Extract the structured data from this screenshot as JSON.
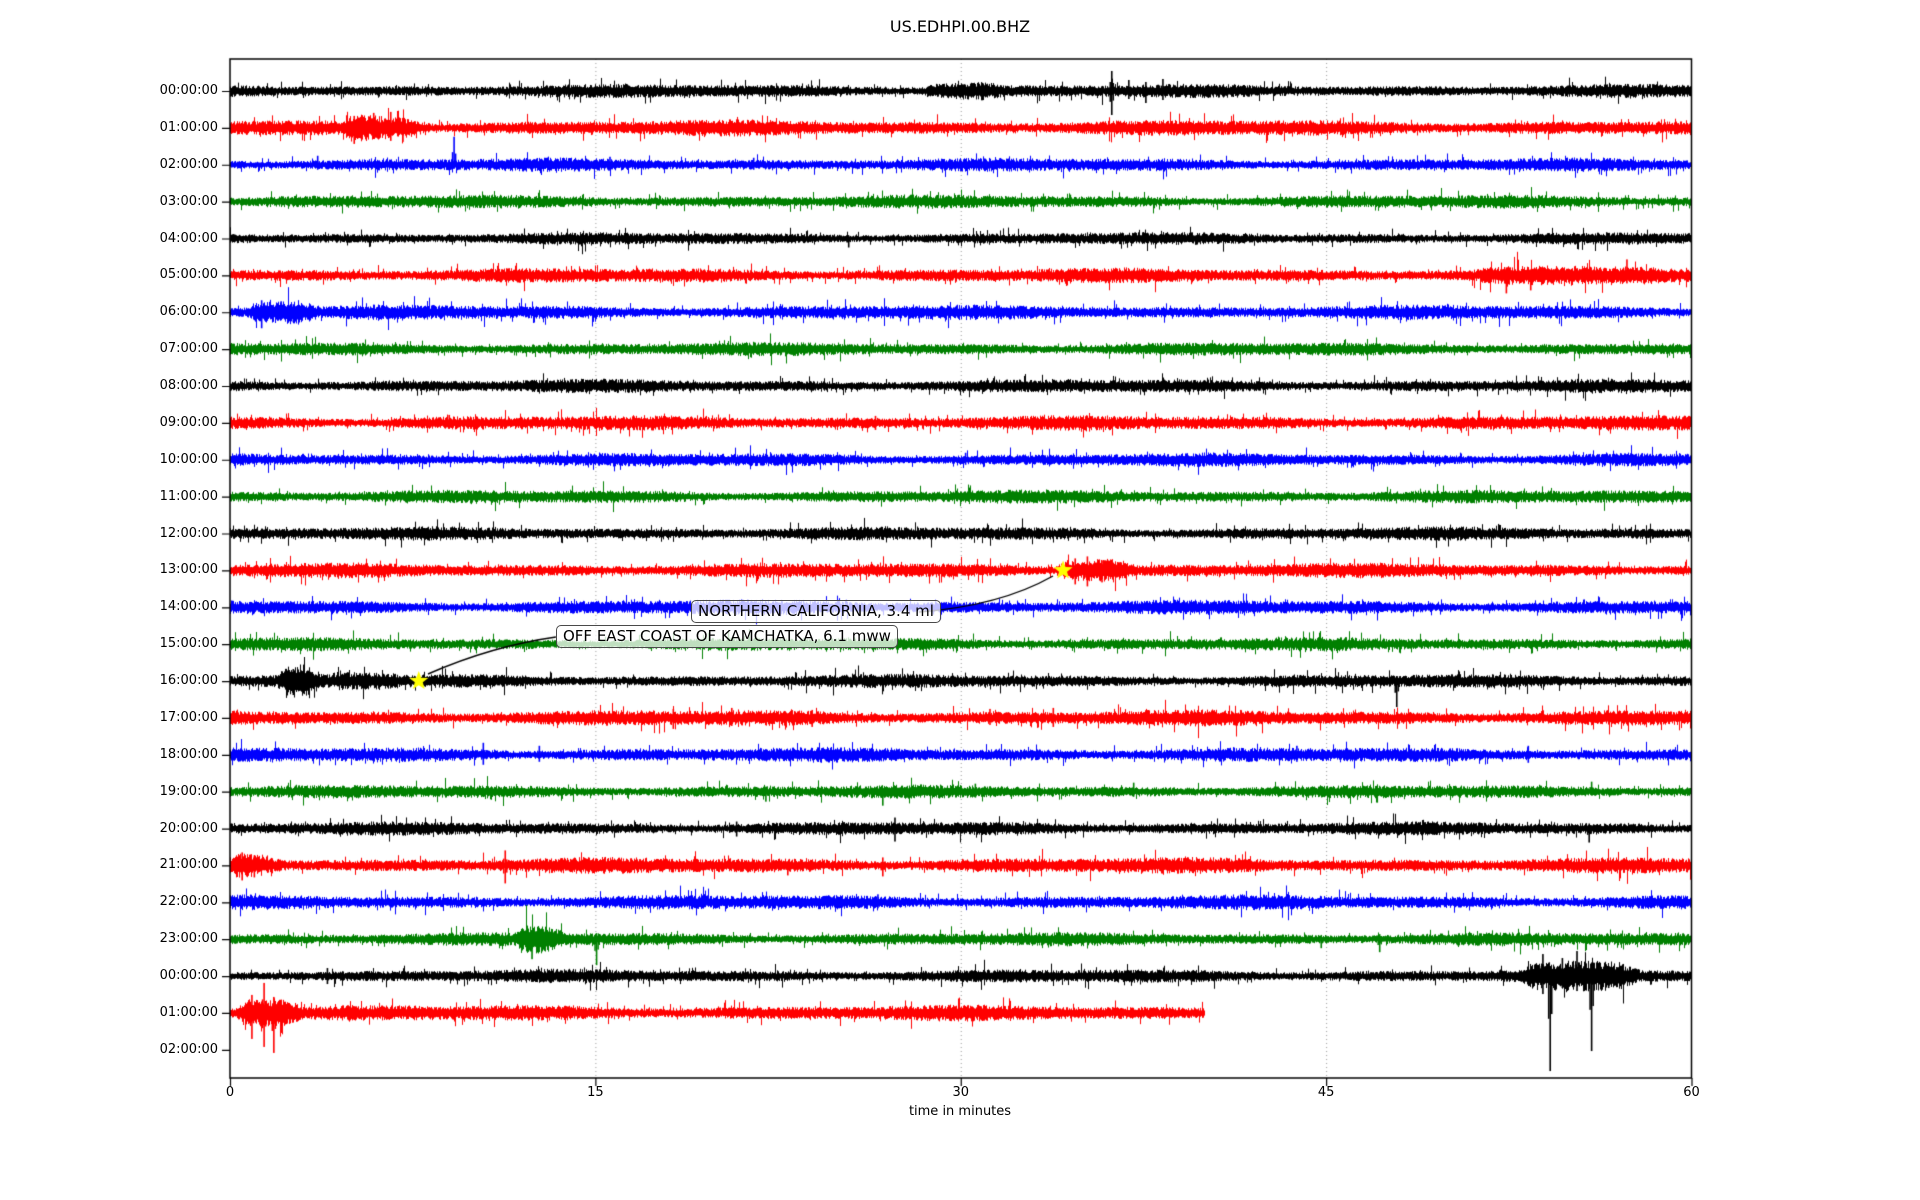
{
  "title": "US.EDHPI.00.BHZ",
  "chart_data": {
    "type": "line",
    "subtype": "seismogram-dayplot",
    "station_id": "US.EDHPI.00.BHZ",
    "xlabel": "time in minutes",
    "xlim": [
      0,
      60
    ],
    "x_ticks": [
      0,
      15,
      30,
      45,
      60
    ],
    "grid_minutes": [
      15,
      30,
      45
    ],
    "grid_style": "dotted-gray-vertical",
    "row_color_cycle": [
      "#000000",
      "#ff0000",
      "#0000ff",
      "#008000"
    ],
    "marker": {
      "shape": "star",
      "color": "#ffff00"
    },
    "annotations": [
      {
        "text": "NORTHERN CALIFORNIA, 3.4 ml",
        "row": 13,
        "minute": 34.2
      },
      {
        "text": "OFF EAST COAST OF KAMCHATKA, 6.1 mww",
        "row": 16,
        "minute": 7.75
      }
    ],
    "rows": [
      {
        "label": "00:00:00",
        "color": "#000000",
        "amp": 5.5,
        "coverage": [
          0,
          60
        ],
        "bursts": [
          [
            28.8,
            31.2,
            1.8
          ]
        ],
        "spikes": [
          [
            36.2,
            20,
            24
          ],
          [
            36.9,
            11,
            8
          ],
          [
            37.6,
            9,
            12
          ],
          [
            38.3,
            12,
            9
          ]
        ]
      },
      {
        "label": "01:00:00",
        "color": "#ff0000",
        "amp": 6.5,
        "coverage": [
          0,
          60
        ],
        "bursts": [
          [
            4.9,
            7.6,
            2.1
          ]
        ],
        "spikes": [
          [
            5.1,
            12,
            16
          ],
          [
            5.9,
            15,
            10
          ],
          [
            6.6,
            16,
            13
          ],
          [
            7.1,
            10,
            14
          ]
        ]
      },
      {
        "label": "02:00:00",
        "color": "#0000ff",
        "amp": 5.5,
        "coverage": [
          0,
          60
        ],
        "bursts": [],
        "spikes": [
          [
            3.6,
            9,
            5
          ],
          [
            9.2,
            28,
            4
          ],
          [
            15.6,
            8,
            6
          ],
          [
            21.5,
            7,
            5
          ]
        ]
      },
      {
        "label": "03:00:00",
        "color": "#008000",
        "amp": 5.5,
        "coverage": [
          0,
          60
        ],
        "bursts": [],
        "spikes": [
          [
            34.5,
            7,
            5
          ]
        ]
      },
      {
        "label": "04:00:00",
        "color": "#000000",
        "amp": 5.0,
        "coverage": [
          0,
          60
        ],
        "bursts": [],
        "spikes": [
          [
            25.4,
            3,
            9
          ]
        ]
      },
      {
        "label": "05:00:00",
        "color": "#ff0000",
        "amp": 6.0,
        "coverage": [
          0,
          60
        ],
        "bursts": [
          [
            51.5,
            58.5,
            1.35
          ]
        ],
        "spikes": [
          [
            52.4,
            8,
            18
          ],
          [
            53.4,
            6,
            15
          ],
          [
            57.35,
            16,
            8
          ],
          [
            58.4,
            6,
            6
          ]
        ]
      },
      {
        "label": "06:00:00",
        "color": "#0000ff",
        "amp": 6.0,
        "coverage": [
          0,
          60
        ],
        "bursts": [
          [
            1.0,
            3.1,
            2.3
          ]
        ],
        "spikes": [
          [
            1.3,
            12,
            16
          ],
          [
            2.1,
            11,
            8
          ],
          [
            2.6,
            8,
            10
          ]
        ]
      },
      {
        "label": "07:00:00",
        "color": "#008000",
        "amp": 5.5,
        "coverage": [
          0,
          60
        ],
        "bursts": [],
        "spikes": []
      },
      {
        "label": "08:00:00",
        "color": "#000000",
        "amp": 5.5,
        "coverage": [
          0,
          60
        ],
        "bursts": [],
        "spikes": []
      },
      {
        "label": "09:00:00",
        "color": "#ff0000",
        "amp": 6.0,
        "coverage": [
          0,
          60
        ],
        "bursts": [],
        "spikes": [
          [
            9.0,
            8,
            6
          ],
          [
            26.5,
            7,
            7
          ]
        ]
      },
      {
        "label": "10:00:00",
        "color": "#0000ff",
        "amp": 5.5,
        "coverage": [
          0,
          60
        ],
        "bursts": [],
        "spikes": [
          [
            30.2,
            7,
            5
          ]
        ]
      },
      {
        "label": "11:00:00",
        "color": "#008000",
        "amp": 5.5,
        "coverage": [
          0,
          60
        ],
        "bursts": [],
        "spikes": []
      },
      {
        "label": "12:00:00",
        "color": "#000000",
        "amp": 5.5,
        "coverage": [
          0,
          60
        ],
        "bursts": [],
        "spikes": []
      },
      {
        "label": "13:00:00",
        "color": "#ff0000",
        "amp": 6.0,
        "coverage": [
          0,
          60
        ],
        "bursts": [
          [
            34.25,
            36.6,
            2.5
          ]
        ],
        "spikes": [
          [
            34.7,
            12,
            14
          ],
          [
            35.2,
            14,
            16
          ],
          [
            35.8,
            10,
            12
          ]
        ]
      },
      {
        "label": "14:00:00",
        "color": "#0000ff",
        "amp": 6.0,
        "coverage": [
          0,
          60
        ],
        "bursts": [],
        "spikes": []
      },
      {
        "label": "15:00:00",
        "color": "#008000",
        "amp": 5.5,
        "coverage": [
          0,
          60
        ],
        "bursts": [],
        "spikes": []
      },
      {
        "label": "16:00:00",
        "color": "#000000",
        "amp": 5.5,
        "coverage": [
          0,
          60
        ],
        "bursts": [
          [
            2.3,
            3.3,
            2.6
          ],
          [
            4.3,
            6.6,
            1.5
          ]
        ],
        "spikes": [
          [
            2.6,
            12,
            14
          ],
          [
            47.9,
            4,
            26
          ]
        ]
      },
      {
        "label": "17:00:00",
        "color": "#ff0000",
        "amp": 6.5,
        "coverage": [
          0,
          60
        ],
        "bursts": [],
        "spikes": [
          [
            18.2,
            9,
            11
          ],
          [
            20.6,
            10,
            8
          ],
          [
            23.9,
            8,
            9
          ],
          [
            31.2,
            9,
            7
          ],
          [
            33.8,
            10,
            9
          ],
          [
            41.5,
            8,
            8
          ]
        ]
      },
      {
        "label": "18:00:00",
        "color": "#0000ff",
        "amp": 6.0,
        "coverage": [
          0,
          60
        ],
        "bursts": [],
        "spikes": [
          [
            10.4,
            12,
            10
          ],
          [
            12.7,
            9,
            7
          ],
          [
            43.8,
            9,
            7
          ],
          [
            53.3,
            9,
            8
          ]
        ]
      },
      {
        "label": "19:00:00",
        "color": "#008000",
        "amp": 5.5,
        "coverage": [
          0,
          60
        ],
        "bursts": [],
        "spikes": [
          [
            22.0,
            5,
            10
          ],
          [
            26.8,
            4,
            14
          ],
          [
            30.6,
            8,
            6
          ],
          [
            37.1,
            9,
            5
          ],
          [
            47.1,
            4,
            11
          ],
          [
            55.9,
            10,
            4
          ]
        ]
      },
      {
        "label": "20:00:00",
        "color": "#000000",
        "amp": 5.5,
        "coverage": [
          0,
          60
        ],
        "bursts": [],
        "spikes": [
          [
            20.8,
            7,
            8
          ],
          [
            27.3,
            11,
            13
          ],
          [
            55.8,
            5,
            14
          ]
        ]
      },
      {
        "label": "21:00:00",
        "color": "#ff0000",
        "amp": 6.5,
        "coverage": [
          0,
          60
        ],
        "bursts": [
          [
            0.2,
            1.6,
            1.9
          ]
        ],
        "spikes": [
          [
            0.5,
            13,
            15
          ],
          [
            1.0,
            10,
            12
          ],
          [
            11.3,
            15,
            18
          ],
          [
            22.9,
            4,
            10
          ],
          [
            26.8,
            8,
            11
          ]
        ]
      },
      {
        "label": "22:00:00",
        "color": "#0000ff",
        "amp": 6.0,
        "coverage": [
          0,
          60
        ],
        "bursts": [],
        "spikes": [
          [
            26.6,
            8,
            6
          ]
        ]
      },
      {
        "label": "23:00:00",
        "color": "#008000",
        "amp": 5.5,
        "coverage": [
          0,
          60
        ],
        "bursts": [
          [
            12.1,
            13.3,
            2.3
          ]
        ],
        "spikes": [
          [
            12.4,
            8,
            20
          ],
          [
            12.8,
            6,
            12
          ],
          [
            15.05,
            6,
            26
          ],
          [
            44.8,
            4,
            9
          ],
          [
            47.2,
            5,
            13
          ]
        ]
      },
      {
        "label": "00:00:00",
        "color": "#000000",
        "amp": 5.5,
        "coverage": [
          0,
          60
        ],
        "bursts": [
          [
            53.4,
            57.3,
            2.1
          ]
        ],
        "spikes": [
          [
            4.0,
            8,
            8
          ],
          [
            53.9,
            22,
            18
          ],
          [
            54.2,
            10,
            95
          ],
          [
            54.7,
            18,
            12
          ],
          [
            55.3,
            25,
            15
          ],
          [
            55.9,
            12,
            75
          ],
          [
            56.6,
            10,
            12
          ]
        ]
      },
      {
        "label": "01:00:00",
        "color": "#ff0000",
        "amp": 6.5,
        "coverage": [
          0,
          40
        ],
        "bursts": [
          [
            0.6,
            2.4,
            2.8
          ]
        ],
        "spikes": [
          [
            0.9,
            18,
            26
          ],
          [
            1.4,
            30,
            34
          ],
          [
            1.8,
            16,
            40
          ],
          [
            2.1,
            12,
            20
          ]
        ]
      },
      {
        "label": "02:00:00",
        "color": "#0000ff",
        "amp": 0,
        "coverage": [
          0,
          0
        ],
        "bursts": [],
        "spikes": []
      }
    ]
  }
}
